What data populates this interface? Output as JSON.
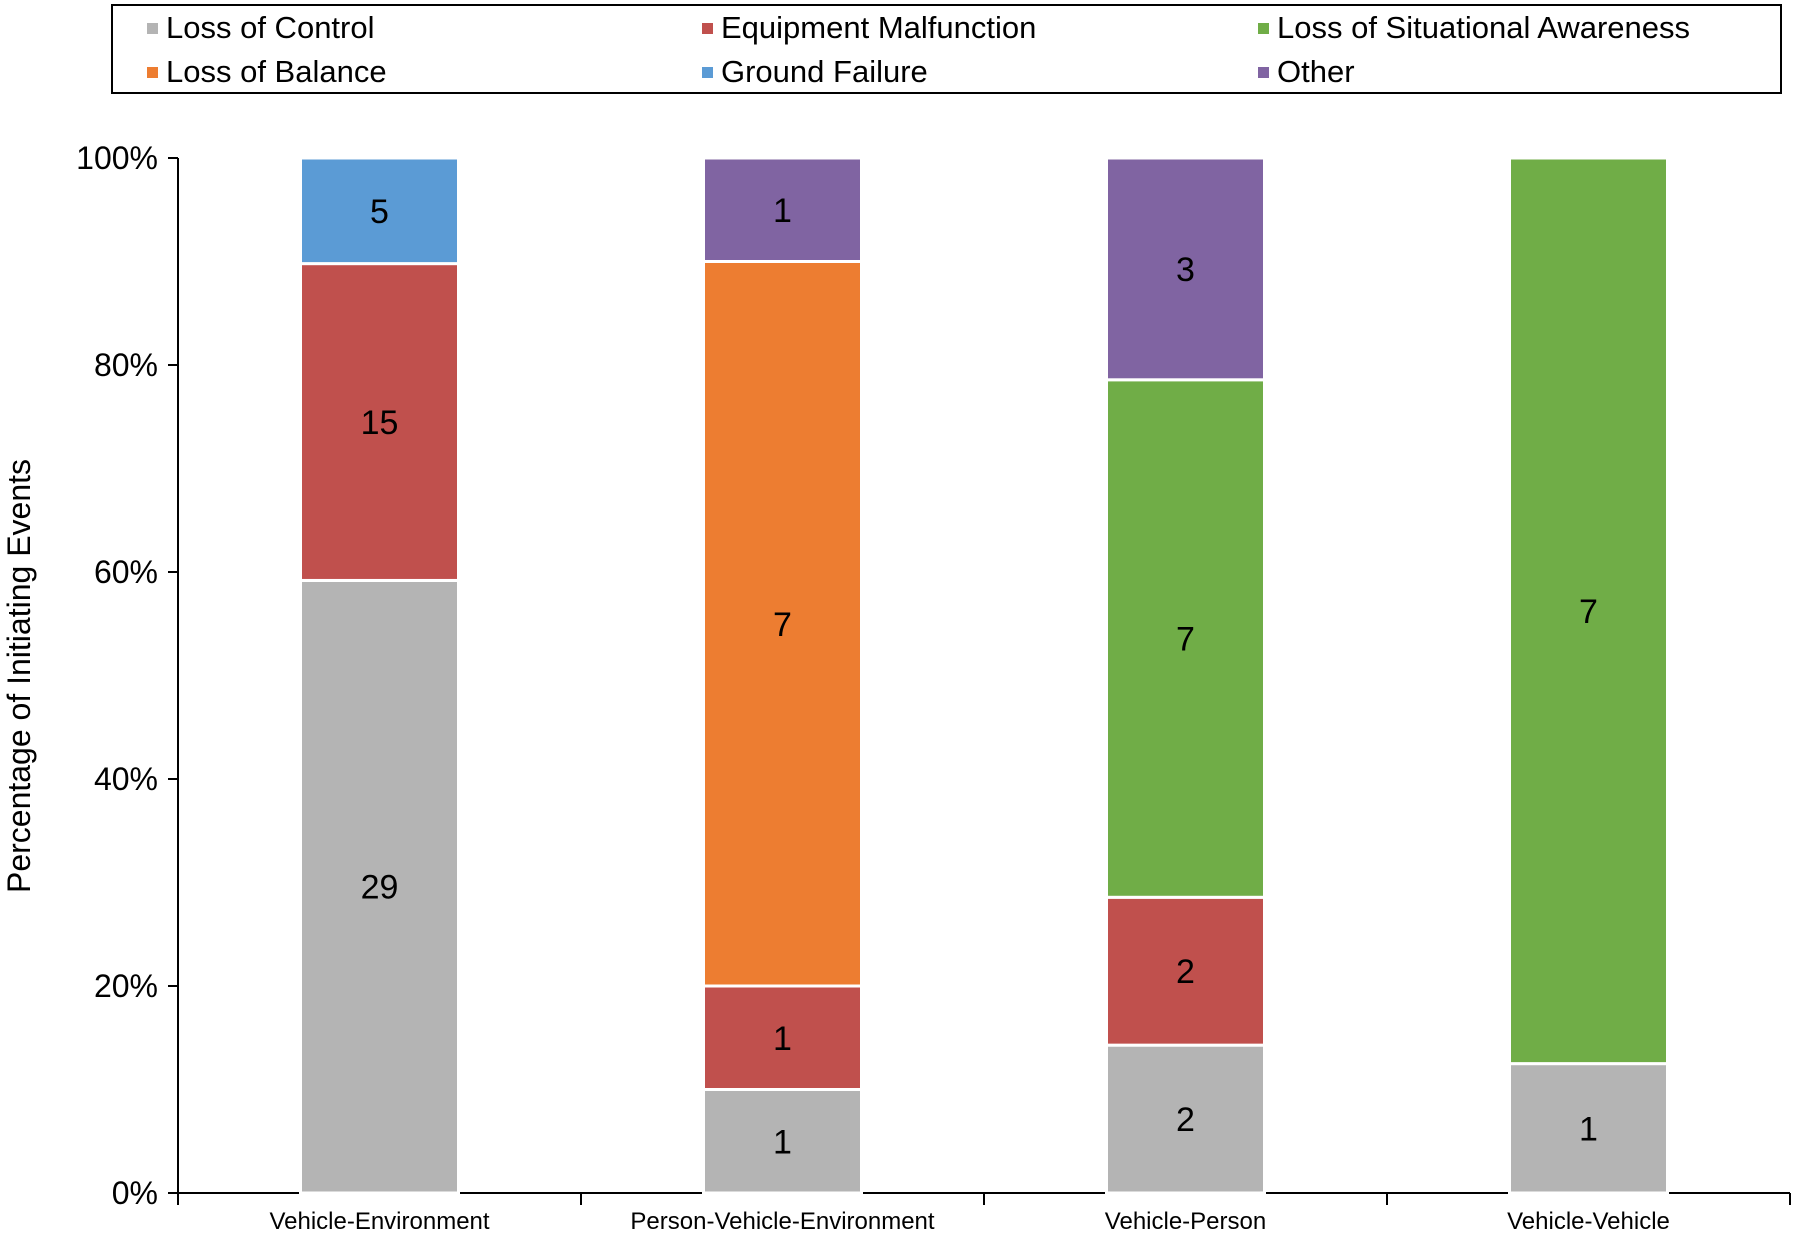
{
  "chart_data": {
    "type": "bar",
    "stacked": "percent",
    "title": "",
    "xlabel": "",
    "ylabel": "Percentage of Initiating Events",
    "ylim": [
      0,
      100
    ],
    "yticks": [
      "0%",
      "20%",
      "40%",
      "60%",
      "80%",
      "100%"
    ],
    "categories": [
      "Vehicle-Environment",
      "Person-Vehicle-Environment",
      "Vehicle-Person",
      "Vehicle-Vehicle"
    ],
    "series": [
      {
        "name": "Loss of Control",
        "color": "#b4b4b4",
        "values": [
          29,
          1,
          2,
          1
        ]
      },
      {
        "name": "Equipment Malfunction",
        "color": "#c0504d",
        "values": [
          15,
          1,
          2,
          0
        ]
      },
      {
        "name": "Loss of Situational Awareness",
        "color": "#70ad47",
        "values": [
          0,
          0,
          7,
          7
        ]
      },
      {
        "name": "Loss of Balance",
        "color": "#ed7d31",
        "values": [
          0,
          7,
          0,
          0
        ]
      },
      {
        "name": "Ground Failure",
        "color": "#5b9bd5",
        "values": [
          5,
          0,
          0,
          0
        ]
      },
      {
        "name": "Other",
        "color": "#8064a2",
        "values": [
          0,
          1,
          3,
          0
        ]
      }
    ],
    "legend": {
      "position": "top",
      "entries": [
        "Loss of Control",
        "Equipment Malfunction",
        "Loss of Situational Awareness",
        "Loss of Balance",
        "Ground Failure",
        "Other"
      ]
    },
    "grid": false
  }
}
